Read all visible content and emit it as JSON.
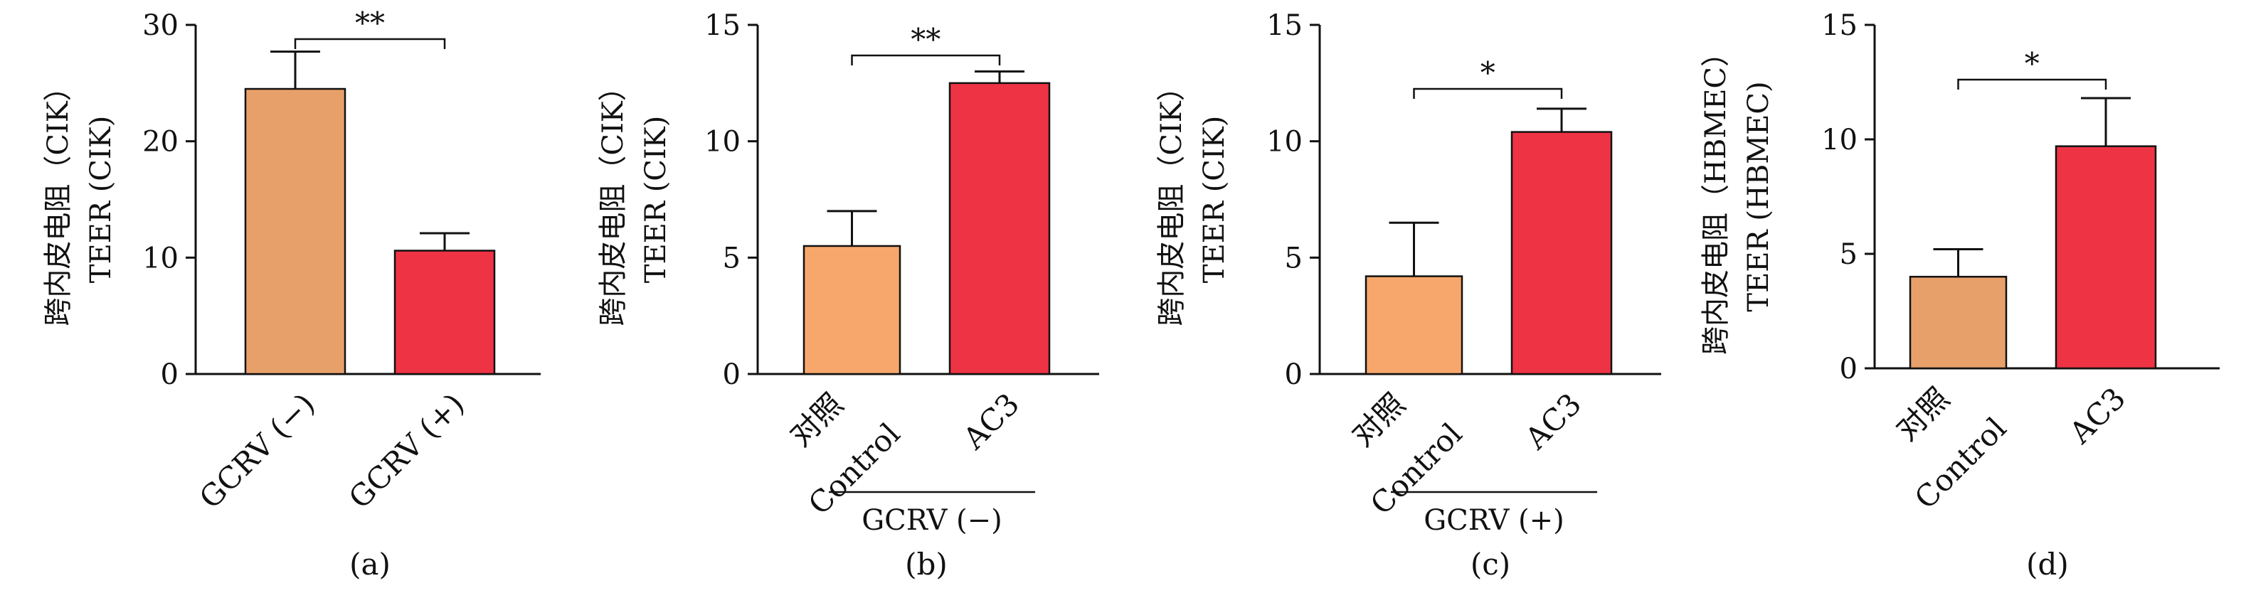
{
  "chart_data": [
    {
      "type": "bar",
      "panel_label": "(a)",
      "ylabel": [
        "跨内皮电阻（CIK）",
        "TEER (CIK)"
      ],
      "ylim": [
        0,
        30
      ],
      "yticks": [
        0,
        10,
        20,
        30
      ],
      "categories": [
        [
          "GCRV (−)"
        ],
        [
          "GCRV (+)"
        ]
      ],
      "values": [
        24.5,
        10.6
      ],
      "errors": [
        3.2,
        1.5
      ],
      "colors": [
        "#e8a06a",
        "#ee3344"
      ],
      "significance": {
        "bars": [
          0,
          1
        ],
        "label": "**"
      },
      "group_label": ""
    },
    {
      "type": "bar",
      "panel_label": "(b)",
      "ylabel": [
        "跨内皮电阻（CIK）",
        "TEER (CIK)"
      ],
      "ylim": [
        0,
        15
      ],
      "yticks": [
        0,
        5,
        10,
        15
      ],
      "categories": [
        [
          "对照",
          "Control"
        ],
        [
          "AC3"
        ]
      ],
      "values": [
        5.5,
        12.5
      ],
      "errors": [
        1.5,
        0.5
      ],
      "colors": [
        "#f7a76b",
        "#ee3344"
      ],
      "significance": {
        "bars": [
          0,
          1
        ],
        "label": "**"
      },
      "group_label": "GCRV (−)"
    },
    {
      "type": "bar",
      "panel_label": "(c)",
      "ylabel": [
        "跨内皮电阻（CIK）",
        "TEER (CIK)"
      ],
      "ylim": [
        0,
        15
      ],
      "yticks": [
        0,
        5,
        10,
        15
      ],
      "categories": [
        [
          "对照",
          "Control"
        ],
        [
          "AC3"
        ]
      ],
      "values": [
        4.2,
        10.4
      ],
      "errors": [
        2.3,
        1.0
      ],
      "colors": [
        "#f7a76b",
        "#ee3344"
      ],
      "significance": {
        "bars": [
          0,
          1
        ],
        "label": "*"
      },
      "group_label": "GCRV (+)"
    },
    {
      "type": "bar",
      "panel_label": "(d)",
      "ylabel": [
        "跨内皮电阻（HBMEC）",
        "TEER (HBMEC)"
      ],
      "ylim": [
        0,
        15
      ],
      "yticks": [
        0,
        5,
        10,
        15
      ],
      "categories": [
        [
          "对照",
          "Control"
        ],
        [
          "AC3"
        ]
      ],
      "values": [
        4.0,
        9.7
      ],
      "errors": [
        1.2,
        2.1
      ],
      "colors": [
        "#e8a06a",
        "#ee3344"
      ],
      "significance": {
        "bars": [
          0,
          1
        ],
        "label": "*"
      },
      "group_label": ""
    }
  ]
}
